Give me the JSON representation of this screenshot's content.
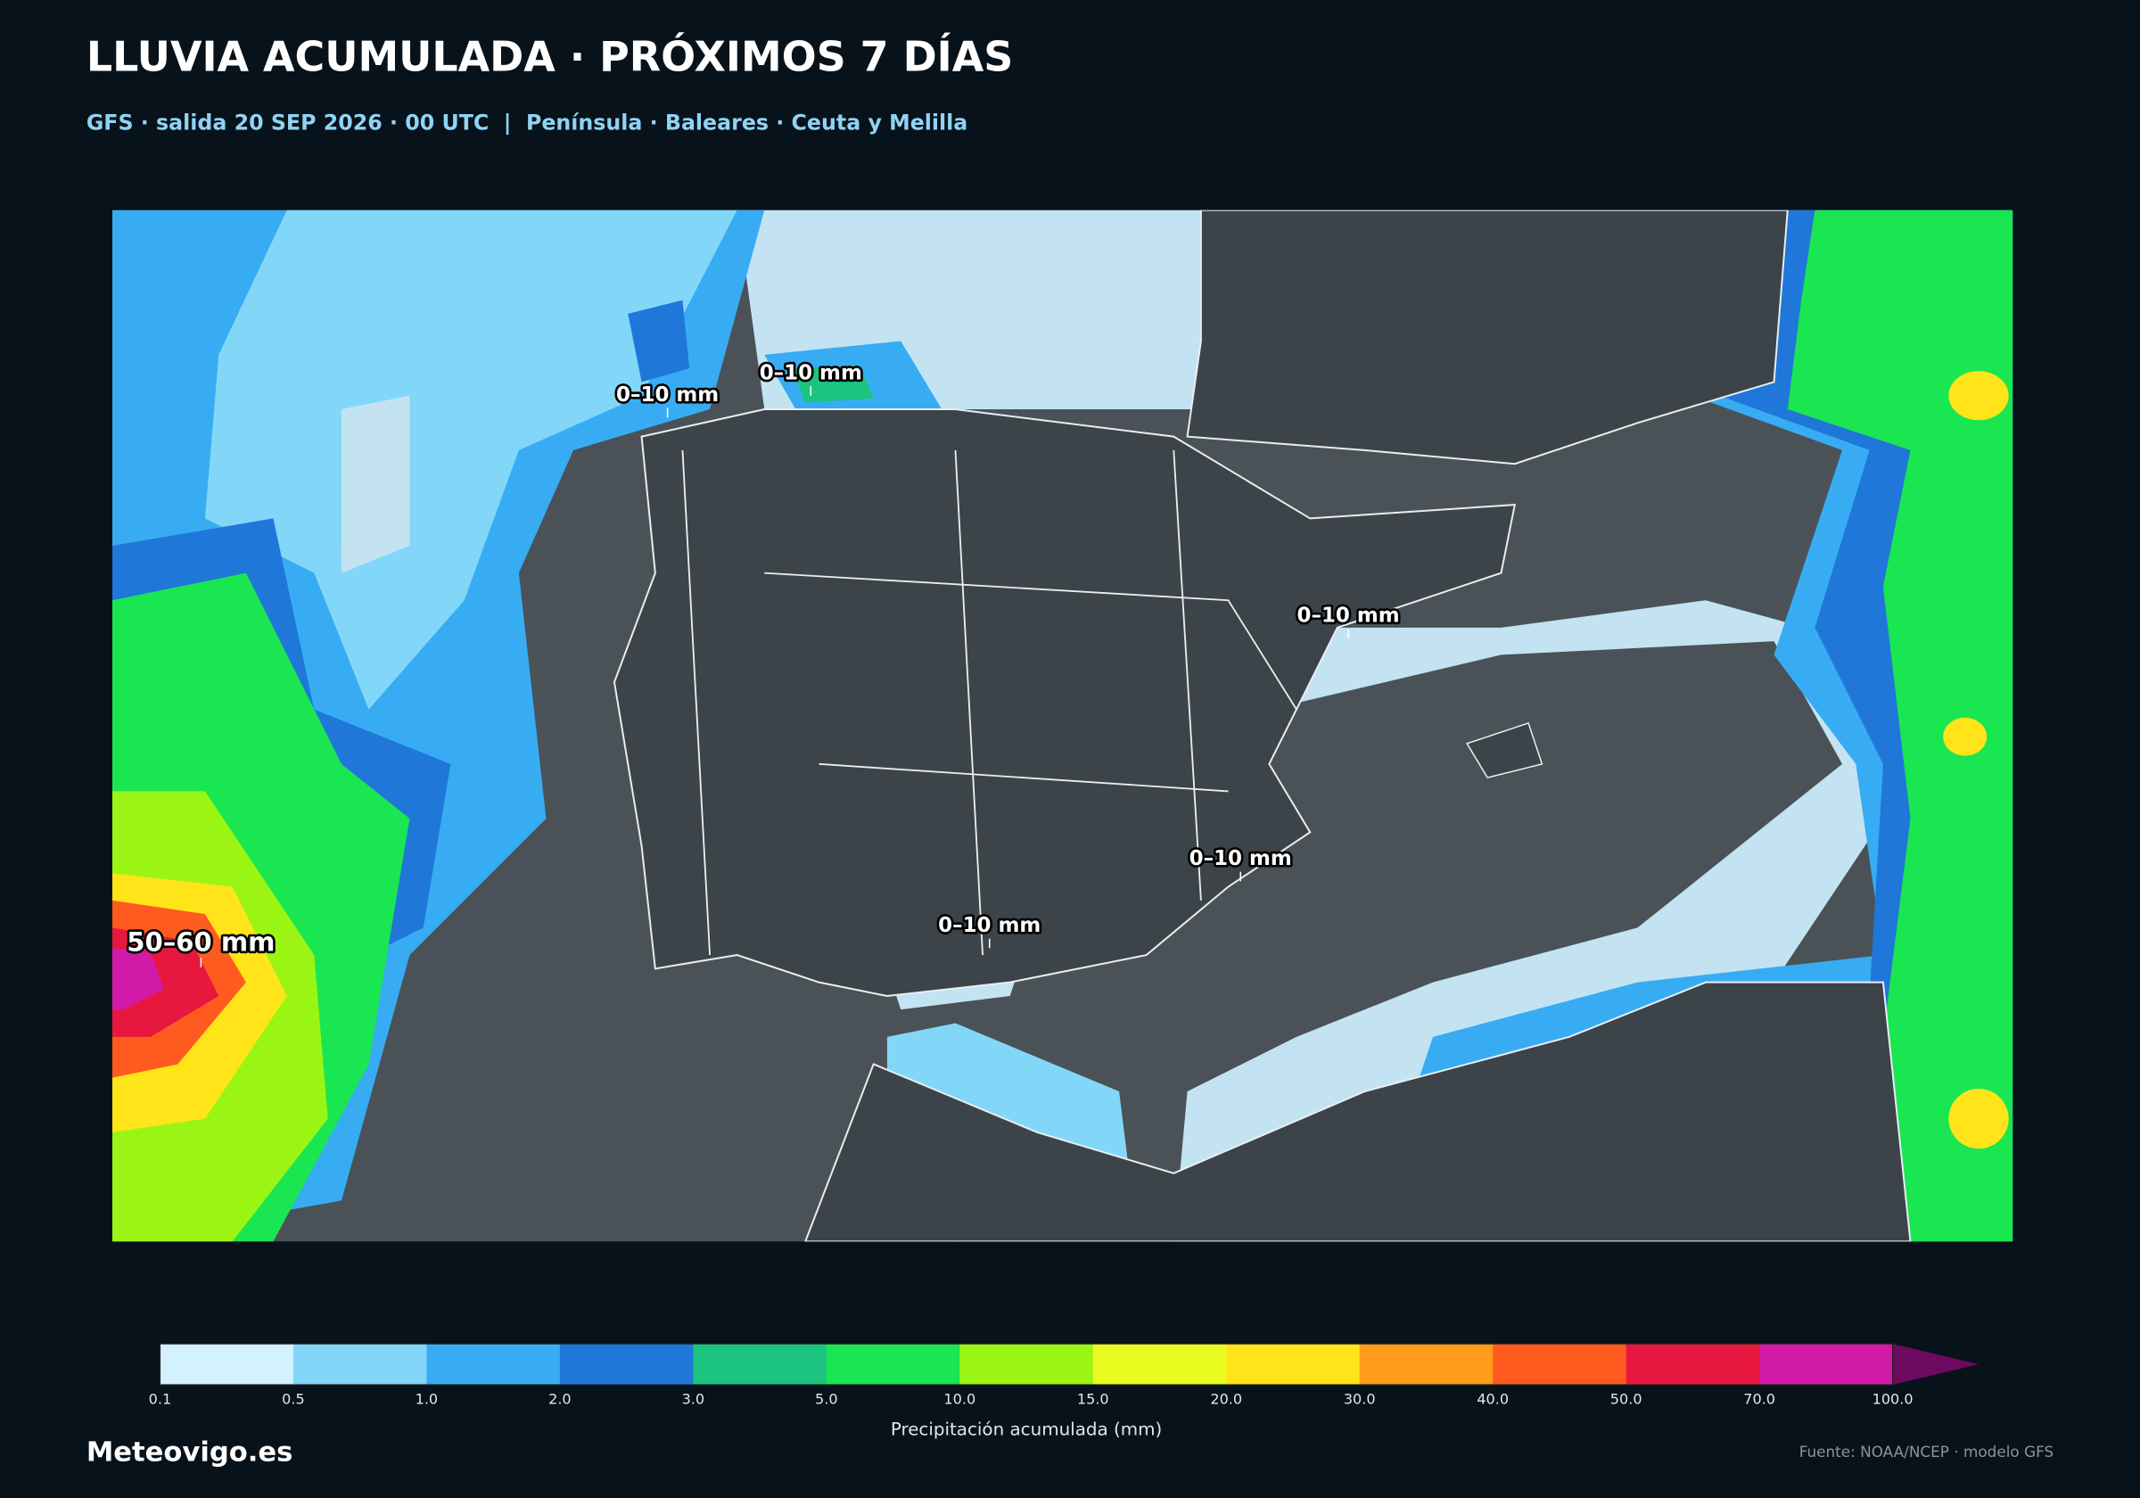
{
  "header": {
    "title": "LLUVIA ACUMULADA · PRÓXIMOS 7 DÍAS",
    "subtitle": "GFS · salida 20 SEP 2026 · 00 UTC  |  Península · Baleares · Ceuta y Melilla"
  },
  "map": {
    "labels": [
      "0–10 mm",
      "0–10 mm",
      "0–10 mm",
      "0–10 mm",
      "0–10 mm",
      "50–60 mm"
    ]
  },
  "colorbar": {
    "colors": [
      "#d4f1ff",
      "#82d7f8",
      "#38acf3",
      "#1f77d9",
      "#1bc47f",
      "#19e651",
      "#9af515",
      "#e9fb1f",
      "#ffe41a",
      "#ff9c19",
      "#ff5a1f",
      "#e8173f",
      "#d21aa8"
    ],
    "extend_color": "#6b0a5e",
    "ticks": [
      "0.1",
      "0.5",
      "1.0",
      "2.0",
      "3.0",
      "5.0",
      "10.0",
      "15.0",
      "20.0",
      "30.0",
      "40.0",
      "50.0",
      "70.0",
      "100.0"
    ],
    "label": "Precipitación acumulada (mm)"
  },
  "footer": {
    "brand": "Meteovigo.es",
    "source": "Fuente: NOAA/NCEP · modelo GFS"
  }
}
